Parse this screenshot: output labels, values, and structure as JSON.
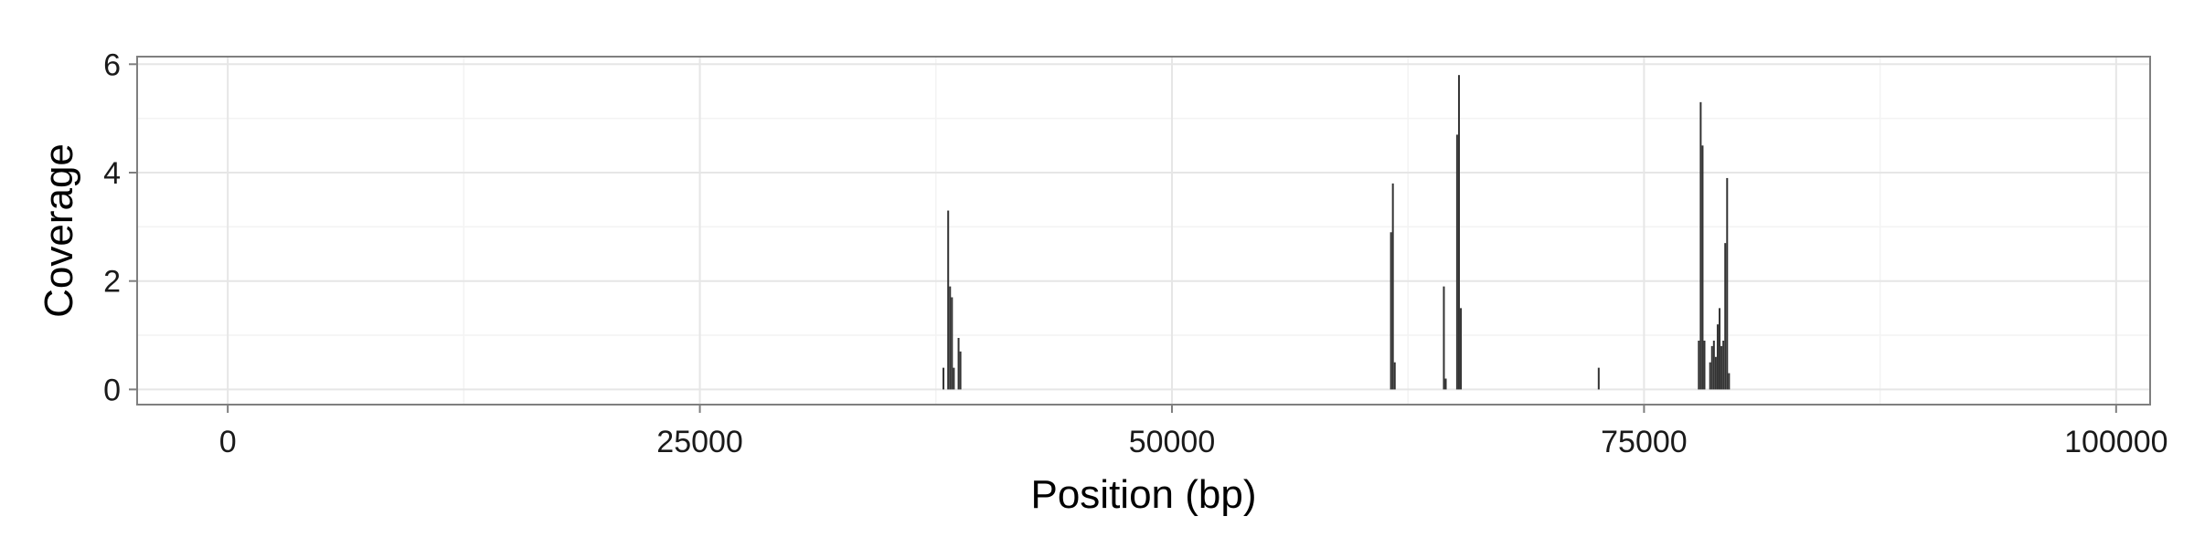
{
  "chart_data": {
    "type": "bar",
    "title": "",
    "xlabel": "Position (bp)",
    "ylabel": "Coverage",
    "xlim": [
      -4800,
      101800
    ],
    "ylim": [
      -0.28,
      6.14
    ],
    "x_ticks": [
      0,
      25000,
      50000,
      75000,
      100000
    ],
    "x_tick_labels": [
      "0",
      "25000",
      "50000",
      "75000",
      "100000"
    ],
    "y_ticks": [
      0,
      2,
      4,
      6
    ],
    "y_tick_labels": [
      "0",
      "2",
      "4",
      "6"
    ],
    "grid": true,
    "legend": "none",
    "points": [
      {
        "x": 37900,
        "y": 0.4
      },
      {
        "x": 38150,
        "y": 3.3
      },
      {
        "x": 38250,
        "y": 1.9
      },
      {
        "x": 38350,
        "y": 1.7
      },
      {
        "x": 38450,
        "y": 0.4
      },
      {
        "x": 38700,
        "y": 0.95
      },
      {
        "x": 38800,
        "y": 0.7
      },
      {
        "x": 61600,
        "y": 2.9
      },
      {
        "x": 61700,
        "y": 3.8
      },
      {
        "x": 61800,
        "y": 0.5
      },
      {
        "x": 64400,
        "y": 1.9
      },
      {
        "x": 64500,
        "y": 0.2
      },
      {
        "x": 65100,
        "y": 4.7
      },
      {
        "x": 65200,
        "y": 5.8
      },
      {
        "x": 65300,
        "y": 1.5
      },
      {
        "x": 72600,
        "y": 0.4
      },
      {
        "x": 77900,
        "y": 0.9
      },
      {
        "x": 78000,
        "y": 5.3
      },
      {
        "x": 78100,
        "y": 4.5
      },
      {
        "x": 78200,
        "y": 0.9
      },
      {
        "x": 78500,
        "y": 0.5
      },
      {
        "x": 78600,
        "y": 0.8
      },
      {
        "x": 78700,
        "y": 0.9
      },
      {
        "x": 78800,
        "y": 0.6
      },
      {
        "x": 78900,
        "y": 1.2
      },
      {
        "x": 79000,
        "y": 1.5
      },
      {
        "x": 79100,
        "y": 0.8
      },
      {
        "x": 79200,
        "y": 0.9
      },
      {
        "x": 79300,
        "y": 2.7
      },
      {
        "x": 79400,
        "y": 3.9
      },
      {
        "x": 79500,
        "y": 0.3
      }
    ],
    "colors": {
      "bar": "#333333",
      "panel_border": "#7f7f7f",
      "grid_major": "#e6e6e6",
      "grid_minor": "#f3f3f3",
      "tick": "#7f7f7f"
    }
  }
}
